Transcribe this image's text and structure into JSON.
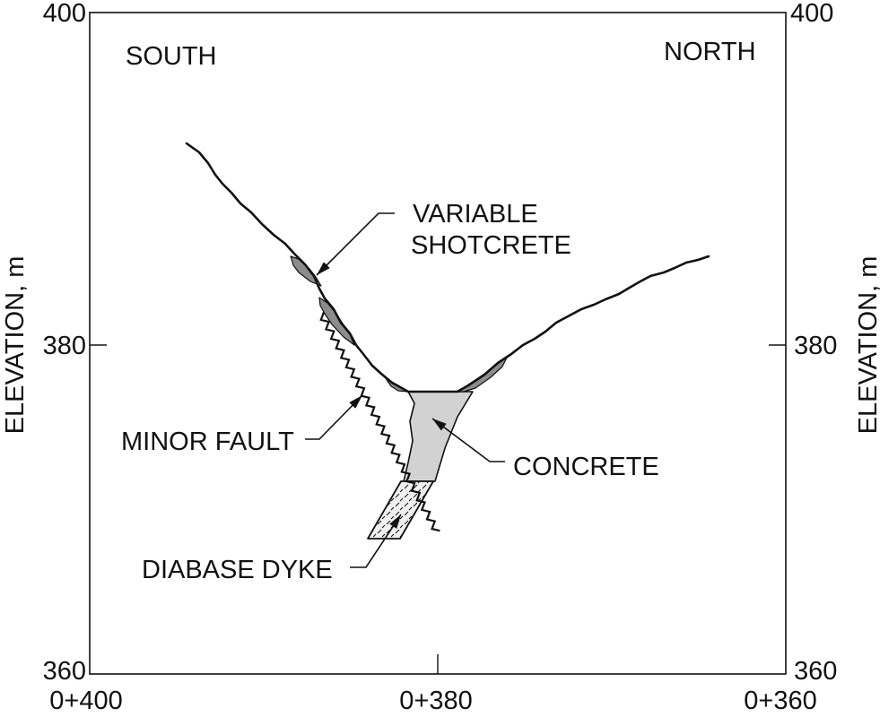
{
  "section": {
    "direction_left": "SOUTH",
    "direction_right": "NORTH",
    "y_axis_label_left": "ELEVATION, m",
    "y_axis_label_right": "ELEVATION, m",
    "elevation_ticks": [
      "400",
      "380",
      "360"
    ],
    "chainage_ticks": [
      "0+400",
      "0+380",
      "0+360"
    ]
  },
  "annotations": {
    "shotcrete": [
      "VARIABLE",
      "SHOTCRETE"
    ],
    "minor_fault": "MINOR FAULT",
    "concrete": "CONCRETE",
    "diabase_dyke": "DIABASE DYKE"
  },
  "colors": {
    "line": "#111111",
    "shotcrete_fill": "#8c8c8c",
    "concrete_fill": "#d2d2d2",
    "dyke_fill": "#f0f0f0"
  }
}
